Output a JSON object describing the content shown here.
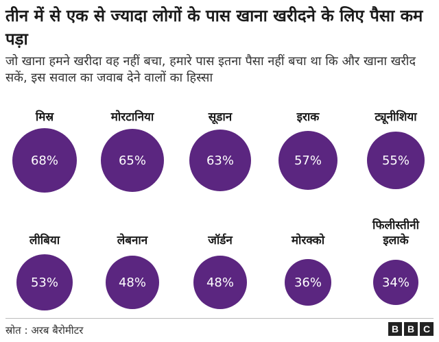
{
  "chart_data": {
    "type": "bubble",
    "title": "तीन में से एक से ज्यादा लोगों के पास खाना खरीदने के लिए पैसा कम पड़ा",
    "subtitle": "जो खाना हमने खरीदा वह नहीं बचा, हमारे पास इतना पैसा नहीं बचा था कि और खाना खरीद सकें, इस सवाल का जवाब देने वालों का हिस्सा",
    "color": "#5b2680",
    "unit": "%",
    "categories": [
      "मिस्र",
      "मोरटानिया",
      "सूडान",
      "इराक",
      "ट्यूनीशिया",
      "लीबिया",
      "लेबनान",
      "जॉर्डन",
      "मोरक्को",
      "फिलीस्तीनी इलाके"
    ],
    "values": [
      68,
      65,
      63,
      57,
      55,
      53,
      48,
      48,
      36,
      34
    ],
    "value_labels": [
      "68%",
      "65%",
      "63%",
      "57%",
      "55%",
      "53%",
      "48%",
      "48%",
      "36%",
      "34%"
    ]
  },
  "footer": {
    "source": "स्रोत : अरब बैरोमीटर",
    "logo_letters": [
      "B",
      "B",
      "C"
    ]
  }
}
